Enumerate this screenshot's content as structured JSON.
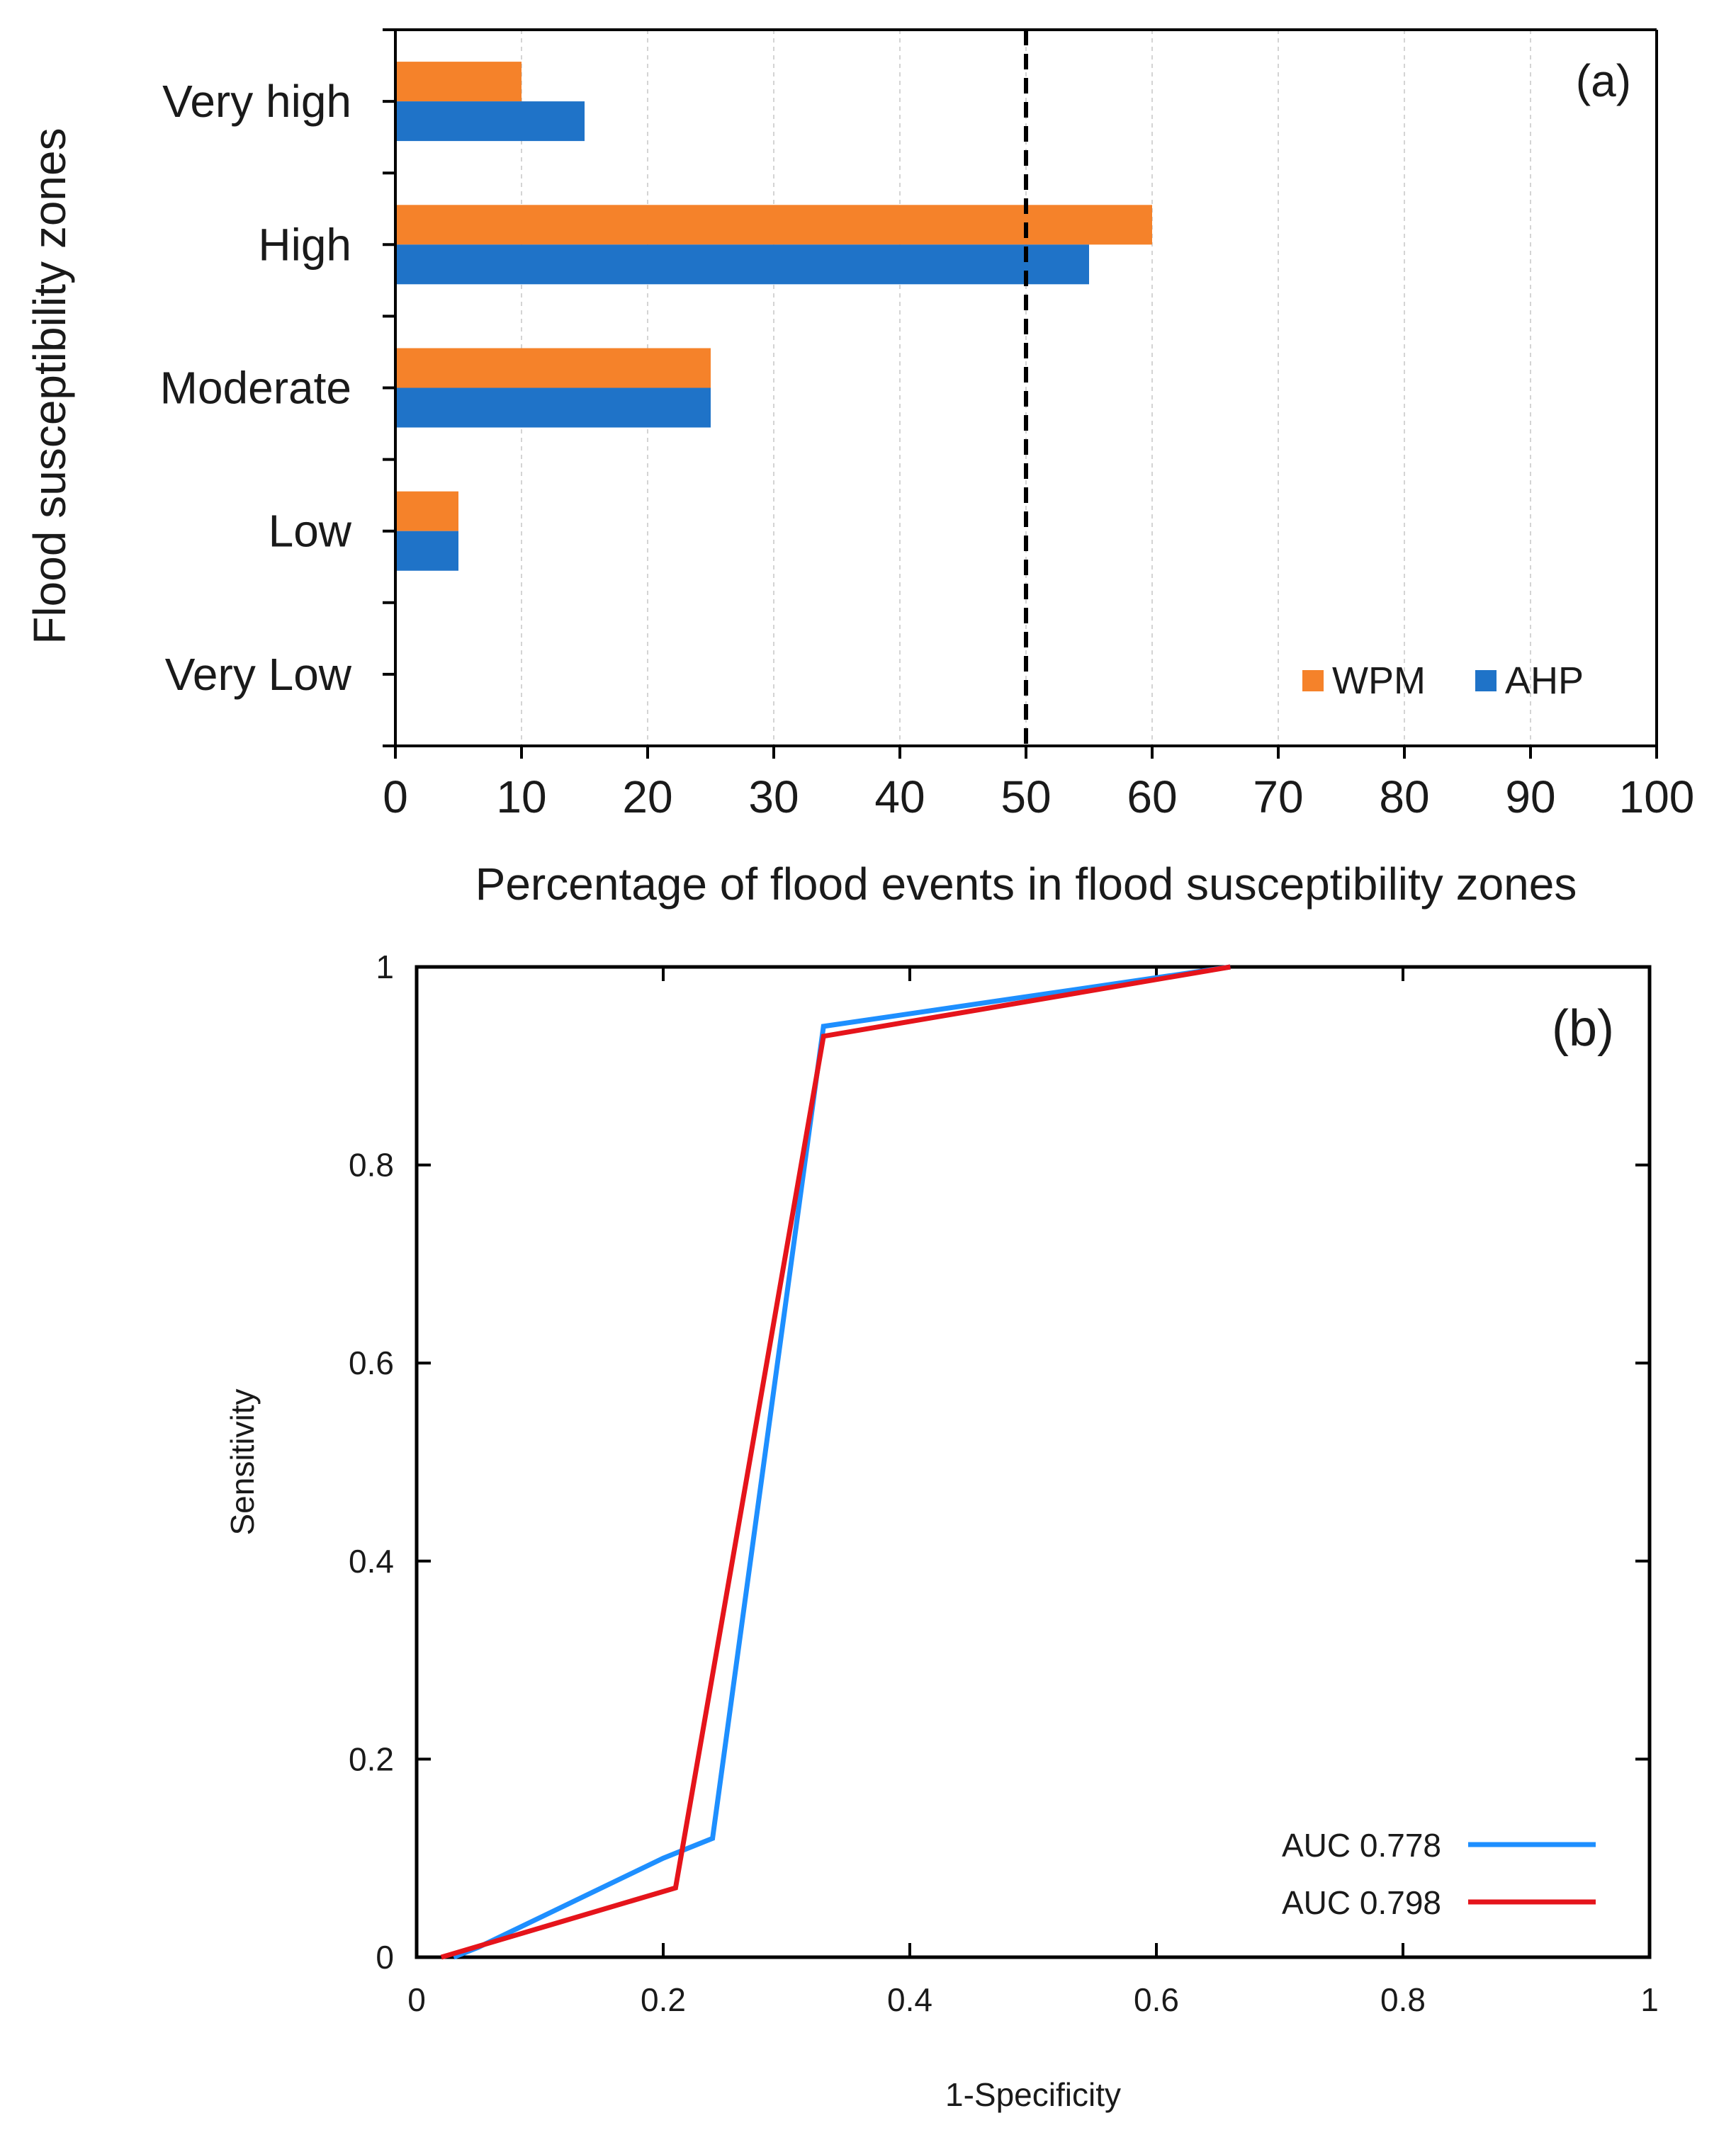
{
  "chart_data": [
    {
      "type": "bar",
      "orientation": "horizontal",
      "panel_label": "(a)",
      "title": "",
      "xlabel": "Percentage of flood events in flood susceptibility zones",
      "ylabel": "Flood susceptibility zones",
      "categories": [
        "Very high",
        "High",
        "Moderate",
        "Low",
        "Very Low"
      ],
      "series": [
        {
          "name": "WPM",
          "color": "#F5822A",
          "values": [
            10,
            60,
            25,
            5,
            0
          ]
        },
        {
          "name": "AHP",
          "color": "#1F73C8",
          "values": [
            15,
            55,
            25,
            5,
            0
          ]
        }
      ],
      "xlim": [
        0,
        100
      ],
      "xticks": [
        "0",
        "10",
        "20",
        "30",
        "40",
        "50",
        "60",
        "70",
        "80",
        "90",
        "100"
      ],
      "grid": "vertical dashed",
      "reference_line": {
        "x": 50,
        "style": "dashed",
        "color": "#000000"
      },
      "legend_position": "bottom-right"
    },
    {
      "type": "line",
      "panel_label": "(b)",
      "title": "",
      "xlabel": "1-Specificity",
      "ylabel": "Sensitivity",
      "xlim": [
        0,
        1
      ],
      "ylim": [
        0,
        1
      ],
      "xticks": [
        "0",
        "0.2",
        "0.4",
        "0.6",
        "0.8",
        "1"
      ],
      "yticks": [
        "0",
        "0.2",
        "0.4",
        "0.6",
        "0.8",
        "1"
      ],
      "grid": false,
      "legend_position": "bottom-right",
      "series": [
        {
          "name": "AUC 0.778",
          "color": "#1E8FFF",
          "x": [
            0.03,
            0.05,
            0.2,
            0.24,
            0.33,
            0.66
          ],
          "y": [
            0.0,
            0.01,
            0.1,
            0.12,
            0.94,
            1.0
          ]
        },
        {
          "name": "AUC 0.798",
          "color": "#E5141B",
          "x": [
            0.02,
            0.21,
            0.33,
            0.66
          ],
          "y": [
            0.0,
            0.07,
            0.93,
            1.0
          ]
        }
      ]
    }
  ]
}
